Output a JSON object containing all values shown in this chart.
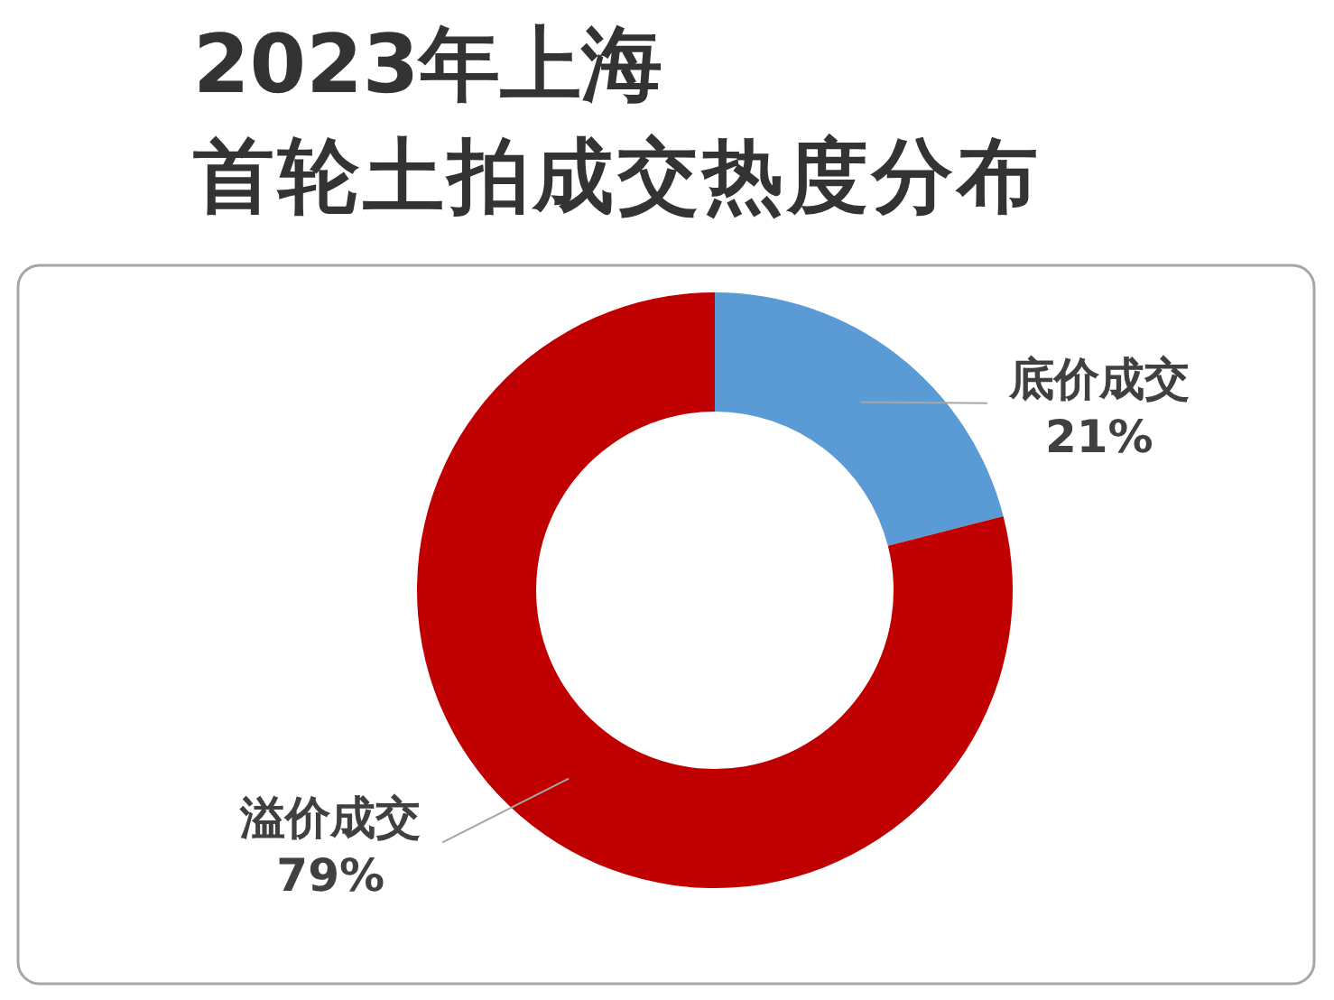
{
  "chart_data": {
    "type": "donut",
    "title": "2023年上海",
    "subtitle": "首轮土拍成交热度分布",
    "categories": [
      "底价成交",
      "溢价成交"
    ],
    "values": [
      21,
      79
    ],
    "value_labels": [
      "21%",
      "79%"
    ],
    "colors": [
      "#5b9bd5",
      "#c00000"
    ]
  }
}
